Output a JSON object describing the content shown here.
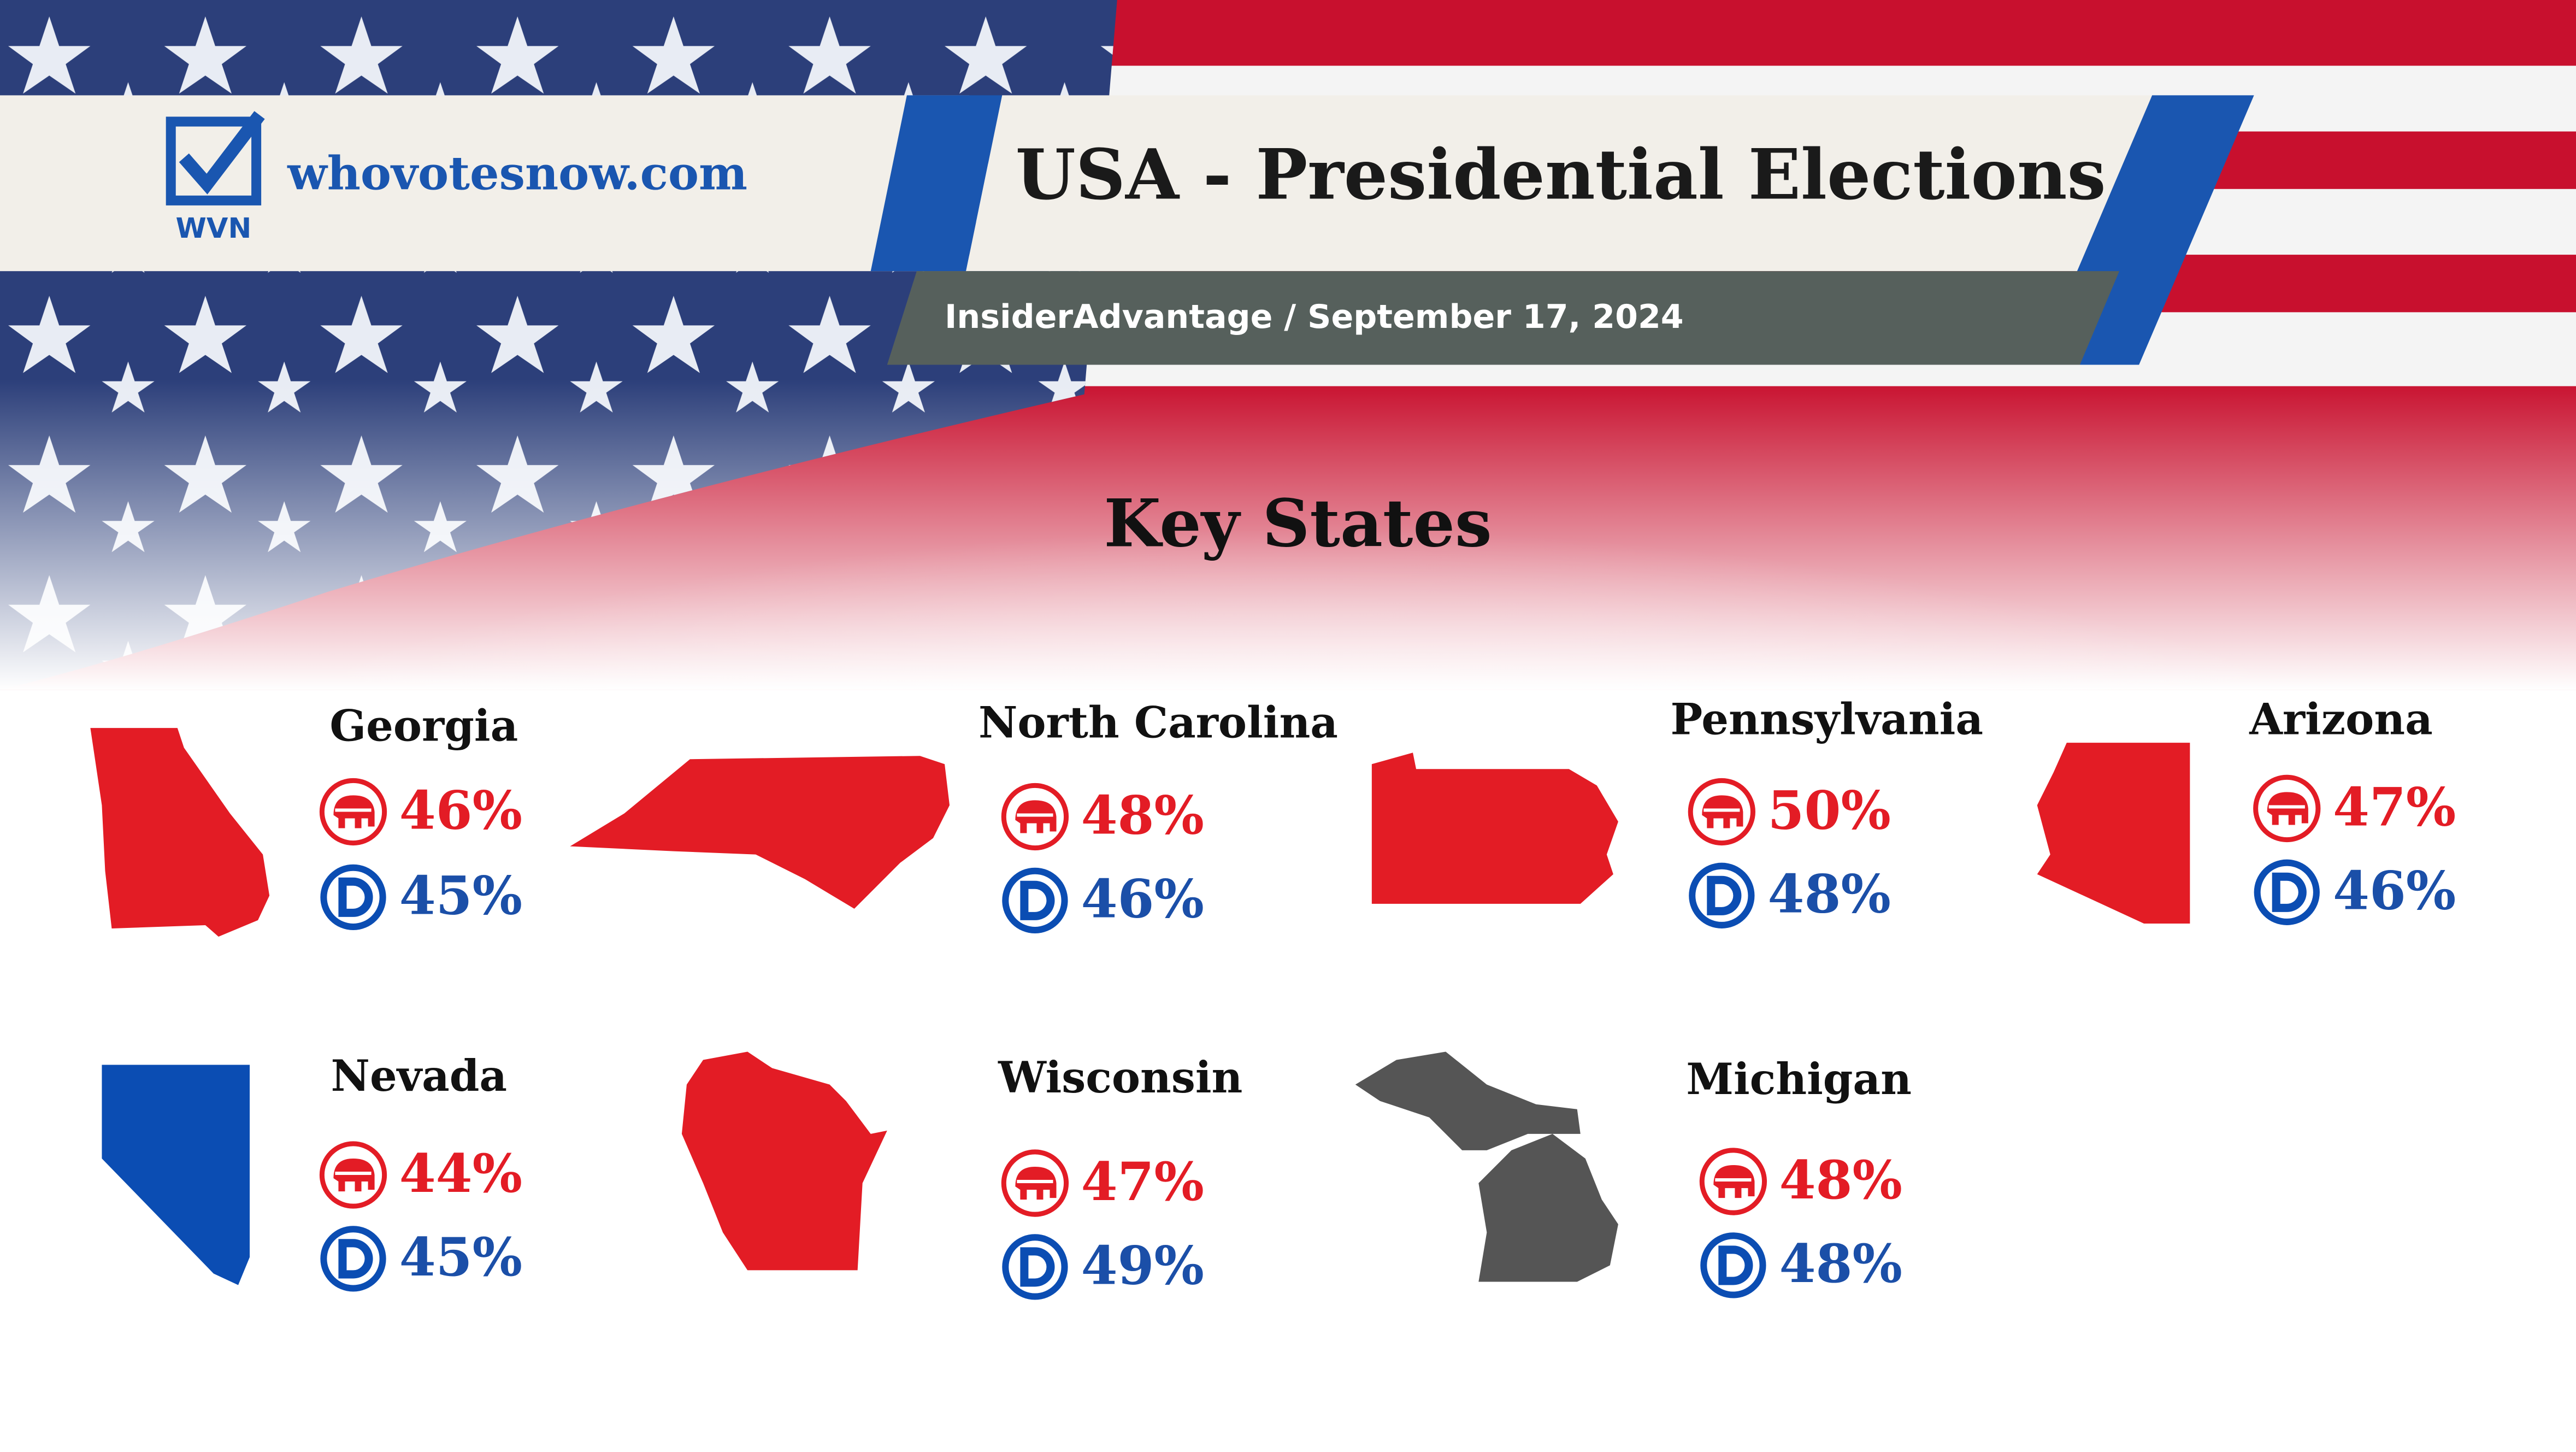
{
  "header": {
    "site": "whovotesnow.com",
    "logo_text": "WVN",
    "title": "USA - Presidential Elections",
    "subtitle": "InsiderAdvantage / September 17, 2024"
  },
  "section_title": "Key States",
  "states": [
    {
      "name": "Georgia",
      "rep": "46%",
      "dem": "45%"
    },
    {
      "name": "North Carolina",
      "rep": "48%",
      "dem": "46%"
    },
    {
      "name": "Pennsylvania",
      "rep": "50%",
      "dem": "48%"
    },
    {
      "name": "Arizona",
      "rep": "47%",
      "dem": "46%"
    },
    {
      "name": "Nevada",
      "rep": "44%",
      "dem": "45%"
    },
    {
      "name": "Wisconsin",
      "rep": "47%",
      "dem": "49%"
    },
    {
      "name": "Michigan",
      "rep": "48%",
      "dem": "48%"
    }
  ]
}
